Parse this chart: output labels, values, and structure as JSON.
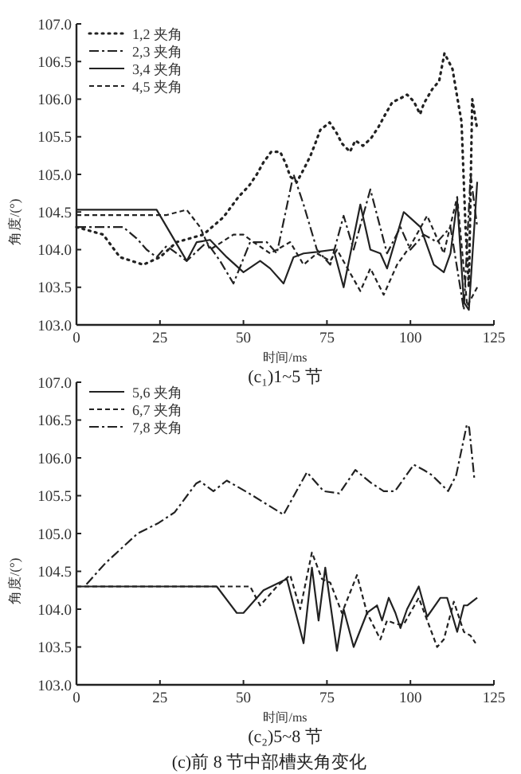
{
  "chart_data": [
    {
      "type": "line",
      "title": "(c₁)1~5 节",
      "xlabel": "时间/ms",
      "ylabel": "角度/(°)",
      "legend": "top left",
      "xlim": [
        0,
        125
      ],
      "ylim": [
        103,
        107
      ],
      "xticks": [
        0,
        25,
        50,
        75,
        100,
        125
      ],
      "yticks": [
        {
          "value": 103,
          "label": "103.0"
        },
        {
          "value": 103.5,
          "label": "103.5"
        },
        {
          "value": 104,
          "label": "104.0"
        },
        {
          "value": 104.5,
          "label": "104.5"
        },
        {
          "value": 105,
          "label": "105.0"
        },
        {
          "value": 105.5,
          "label": "105.5"
        },
        {
          "value": 106,
          "label": "106.0"
        },
        {
          "value": 106.5,
          "label": "106.5"
        },
        {
          "value": 107,
          "label": "107.0"
        }
      ],
      "series": [
        {
          "name": "1,2 夹角",
          "color": "#222222",
          "line_style": "dotted",
          "x": [
            0,
            8,
            13,
            20,
            25,
            30,
            38,
            44,
            48.5,
            51.7,
            54,
            56,
            58.3,
            61,
            62.8,
            64,
            66,
            67.6,
            70,
            71.5,
            73,
            75.8,
            77.9,
            79.5,
            81.9,
            83.5,
            85.8,
            88.2,
            90.3,
            92.5,
            94.6,
            97,
            99,
            101,
            102.9,
            104,
            106.5,
            108.6,
            110.2,
            112.6,
            114,
            115.3,
            116.5,
            117.5,
            118.5,
            120
          ],
          "values": [
            104.3,
            104.2,
            103.9,
            103.8,
            103.9,
            104.1,
            104.2,
            104.43,
            104.7,
            104.85,
            105.0,
            105.16,
            105.3,
            105.3,
            105.13,
            104.97,
            104.9,
            105.03,
            105.24,
            105.41,
            105.59,
            105.69,
            105.55,
            105.41,
            105.3,
            105.45,
            105.38,
            105.48,
            105.62,
            105.8,
            105.96,
            106.01,
            106.06,
            105.97,
            105.8,
            105.94,
            106.13,
            106.24,
            106.61,
            106.4,
            106.03,
            105.7,
            104.3,
            103.5,
            106.0,
            105.6
          ]
        },
        {
          "name": "2,3 夹角",
          "color": "#222222",
          "line_style": "dashdot",
          "x": [
            0,
            14,
            18,
            21,
            24,
            27,
            33,
            39,
            43,
            47,
            52,
            57,
            60,
            65,
            68,
            72,
            76,
            80,
            83,
            88,
            93,
            97,
            100,
            104,
            108,
            112,
            116,
            118,
            120
          ],
          "values": [
            104.3,
            104.3,
            104.15,
            104.0,
            103.9,
            104.05,
            103.85,
            104.1,
            103.85,
            103.55,
            104.1,
            104.1,
            103.95,
            105.0,
            104.6,
            104.0,
            103.8,
            104.45,
            104.0,
            104.8,
            103.95,
            104.3,
            104.0,
            104.2,
            104.1,
            104.3,
            103.2,
            105.0,
            104.3
          ]
        },
        {
          "name": "3,4 夹角",
          "color": "#222222",
          "line_style": "solid",
          "x": [
            0,
            24,
            33,
            36,
            40,
            45,
            50,
            55,
            58,
            62,
            65,
            68,
            72,
            77,
            80,
            85,
            88,
            91,
            93,
            98,
            103,
            107,
            110,
            112,
            114,
            116,
            117.5,
            120
          ],
          "values": [
            104.53,
            104.53,
            103.85,
            104.1,
            104.13,
            103.9,
            103.7,
            103.85,
            103.75,
            103.55,
            103.9,
            103.95,
            103.97,
            104.0,
            103.5,
            104.6,
            104.0,
            103.95,
            103.75,
            104.5,
            104.3,
            103.8,
            103.7,
            103.95,
            104.65,
            103.3,
            103.2,
            104.9
          ]
        },
        {
          "name": "4,5 夹角",
          "color": "#222222",
          "line_style": "dashed",
          "x": [
            0,
            27,
            33,
            37,
            40,
            47,
            50,
            53,
            58,
            64,
            68,
            72,
            76,
            78,
            85,
            88,
            92,
            96,
            100,
            105,
            110,
            114,
            117,
            120
          ],
          "values": [
            104.46,
            104.46,
            104.53,
            104.3,
            104.0,
            104.2,
            104.2,
            104.1,
            103.95,
            104.1,
            103.8,
            103.95,
            103.85,
            104.0,
            103.45,
            103.75,
            103.4,
            103.8,
            104.05,
            104.45,
            103.95,
            104.7,
            103.25,
            103.5
          ]
        }
      ]
    },
    {
      "type": "line",
      "title": "(c₂)5~8 节",
      "xlabel": "时间/ms",
      "ylabel": "角度/(°)",
      "legend": "top left",
      "xlim": [
        0,
        125
      ],
      "ylim": [
        103,
        107
      ],
      "xticks": [
        0,
        25,
        50,
        75,
        100,
        125
      ],
      "yticks": [
        {
          "value": 103,
          "label": "103.0"
        },
        {
          "value": 103.5,
          "label": "103.5"
        },
        {
          "value": 104,
          "label": "104.0"
        },
        {
          "value": 104.5,
          "label": "104.5"
        },
        {
          "value": 105,
          "label": "105.0"
        },
        {
          "value": 105.5,
          "label": "105.5"
        },
        {
          "value": 106,
          "label": "106.0"
        },
        {
          "value": 106.5,
          "label": "106.5"
        },
        {
          "value": 107,
          "label": "107.0"
        }
      ],
      "annotations": [
        "(c)前 8 节中部槽夹角变化"
      ],
      "series": [
        {
          "name": "5,6 夹角",
          "color": "#222222",
          "line_style": "solid",
          "x": [
            0,
            42,
            48,
            50,
            56,
            63,
            68,
            70.5,
            72.5,
            74.5,
            78,
            80,
            83,
            87,
            90,
            91.5,
            93.5,
            95.5,
            97,
            99,
            102.5,
            105,
            109,
            111,
            114,
            116,
            117,
            120
          ],
          "values": [
            104.3,
            104.3,
            103.95,
            103.95,
            104.25,
            104.4,
            103.55,
            104.55,
            103.85,
            104.55,
            103.45,
            104.0,
            103.5,
            103.95,
            104.05,
            103.85,
            104.15,
            103.95,
            103.75,
            104.0,
            104.3,
            103.9,
            104.15,
            104.15,
            103.7,
            104.05,
            104.05,
            104.15
          ]
        },
        {
          "name": "6,7 夹角",
          "color": "#222222",
          "line_style": "dashed",
          "x": [
            0,
            52,
            55,
            60,
            64,
            67,
            70.5,
            73.5,
            76,
            79.5,
            84,
            87,
            91,
            93,
            96,
            98,
            102.5,
            108,
            110,
            113,
            116,
            118,
            119.5
          ],
          "values": [
            104.3,
            104.3,
            104.05,
            104.3,
            104.45,
            104.0,
            104.75,
            104.4,
            104.35,
            103.95,
            104.45,
            103.95,
            103.6,
            103.85,
            103.8,
            103.8,
            104.15,
            103.5,
            103.6,
            104.1,
            103.7,
            103.65,
            103.55
          ]
        },
        {
          "name": "7,8 夹角",
          "color": "#222222",
          "line_style": "dashdot",
          "x": [
            3,
            8.7,
            18.3,
            24.6,
            29.4,
            35.8,
            37,
            41,
            45,
            51.7,
            62,
            69,
            74,
            78.7,
            83.5,
            88.2,
            92,
            95.4,
            101,
            104,
            106.5,
            111.3,
            113.7,
            116.9,
            117.6,
            119.2
          ],
          "values": [
            104.33,
            104.61,
            105.0,
            105.14,
            105.28,
            105.66,
            105.69,
            105.56,
            105.7,
            105.53,
            105.25,
            105.81,
            105.56,
            105.53,
            105.84,
            105.67,
            105.56,
            105.56,
            105.91,
            105.84,
            105.77,
            105.56,
            105.77,
            106.44,
            106.4,
            105.7
          ]
        }
      ]
    }
  ]
}
